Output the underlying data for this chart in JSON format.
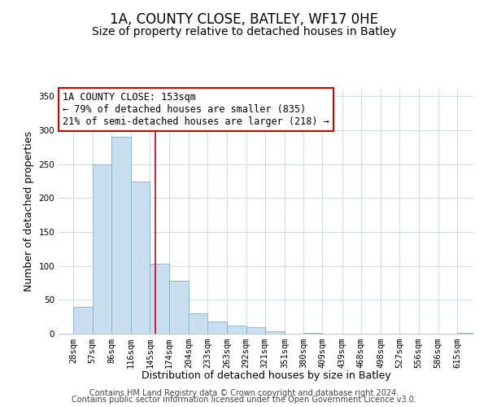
{
  "title": "1A, COUNTY CLOSE, BATLEY, WF17 0HE",
  "subtitle": "Size of property relative to detached houses in Batley",
  "xlabel": "Distribution of detached houses by size in Batley",
  "ylabel": "Number of detached properties",
  "bar_heights": [
    40,
    250,
    290,
    225,
    103,
    78,
    30,
    18,
    12,
    10,
    4,
    0,
    1,
    0,
    0,
    0,
    0,
    0,
    0,
    0,
    1
  ],
  "tick_labels": [
    "28sqm",
    "57sqm",
    "86sqm",
    "116sqm",
    "145sqm",
    "174sqm",
    "204sqm",
    "233sqm",
    "263sqm",
    "292sqm",
    "321sqm",
    "351sqm",
    "380sqm",
    "409sqm",
    "439sqm",
    "468sqm",
    "498sqm",
    "527sqm",
    "556sqm",
    "586sqm",
    "615sqm"
  ],
  "tick_positions": [
    28,
    57,
    86,
    116,
    145,
    174,
    204,
    233,
    263,
    292,
    321,
    351,
    380,
    409,
    439,
    468,
    498,
    527,
    556,
    586,
    615
  ],
  "bar_color": "#c9dff0",
  "bar_edge_color": "#7ab4d4",
  "vline_x": 153,
  "vline_color": "#cc0000",
  "ylim": [
    0,
    360
  ],
  "xlim": [
    5,
    640
  ],
  "annotation_line1": "1A COUNTY CLOSE: 153sqm",
  "annotation_line2": "← 79% of detached houses are smaller (835)",
  "annotation_line3": "21% of semi-detached houses are larger (218) →",
  "annotation_box_color": "#ffffff",
  "annotation_box_edge_color": "#cc0000",
  "footer_line1": "Contains HM Land Registry data © Crown copyright and database right 2024.",
  "footer_line2": "Contains public sector information licensed under the Open Government Licence v3.0.",
  "title_fontsize": 12,
  "subtitle_fontsize": 10,
  "axis_label_fontsize": 9,
  "tick_fontsize": 7.5,
  "annotation_fontsize": 8.5,
  "footer_fontsize": 7,
  "background_color": "#ffffff",
  "grid_color": "#d0dce8"
}
